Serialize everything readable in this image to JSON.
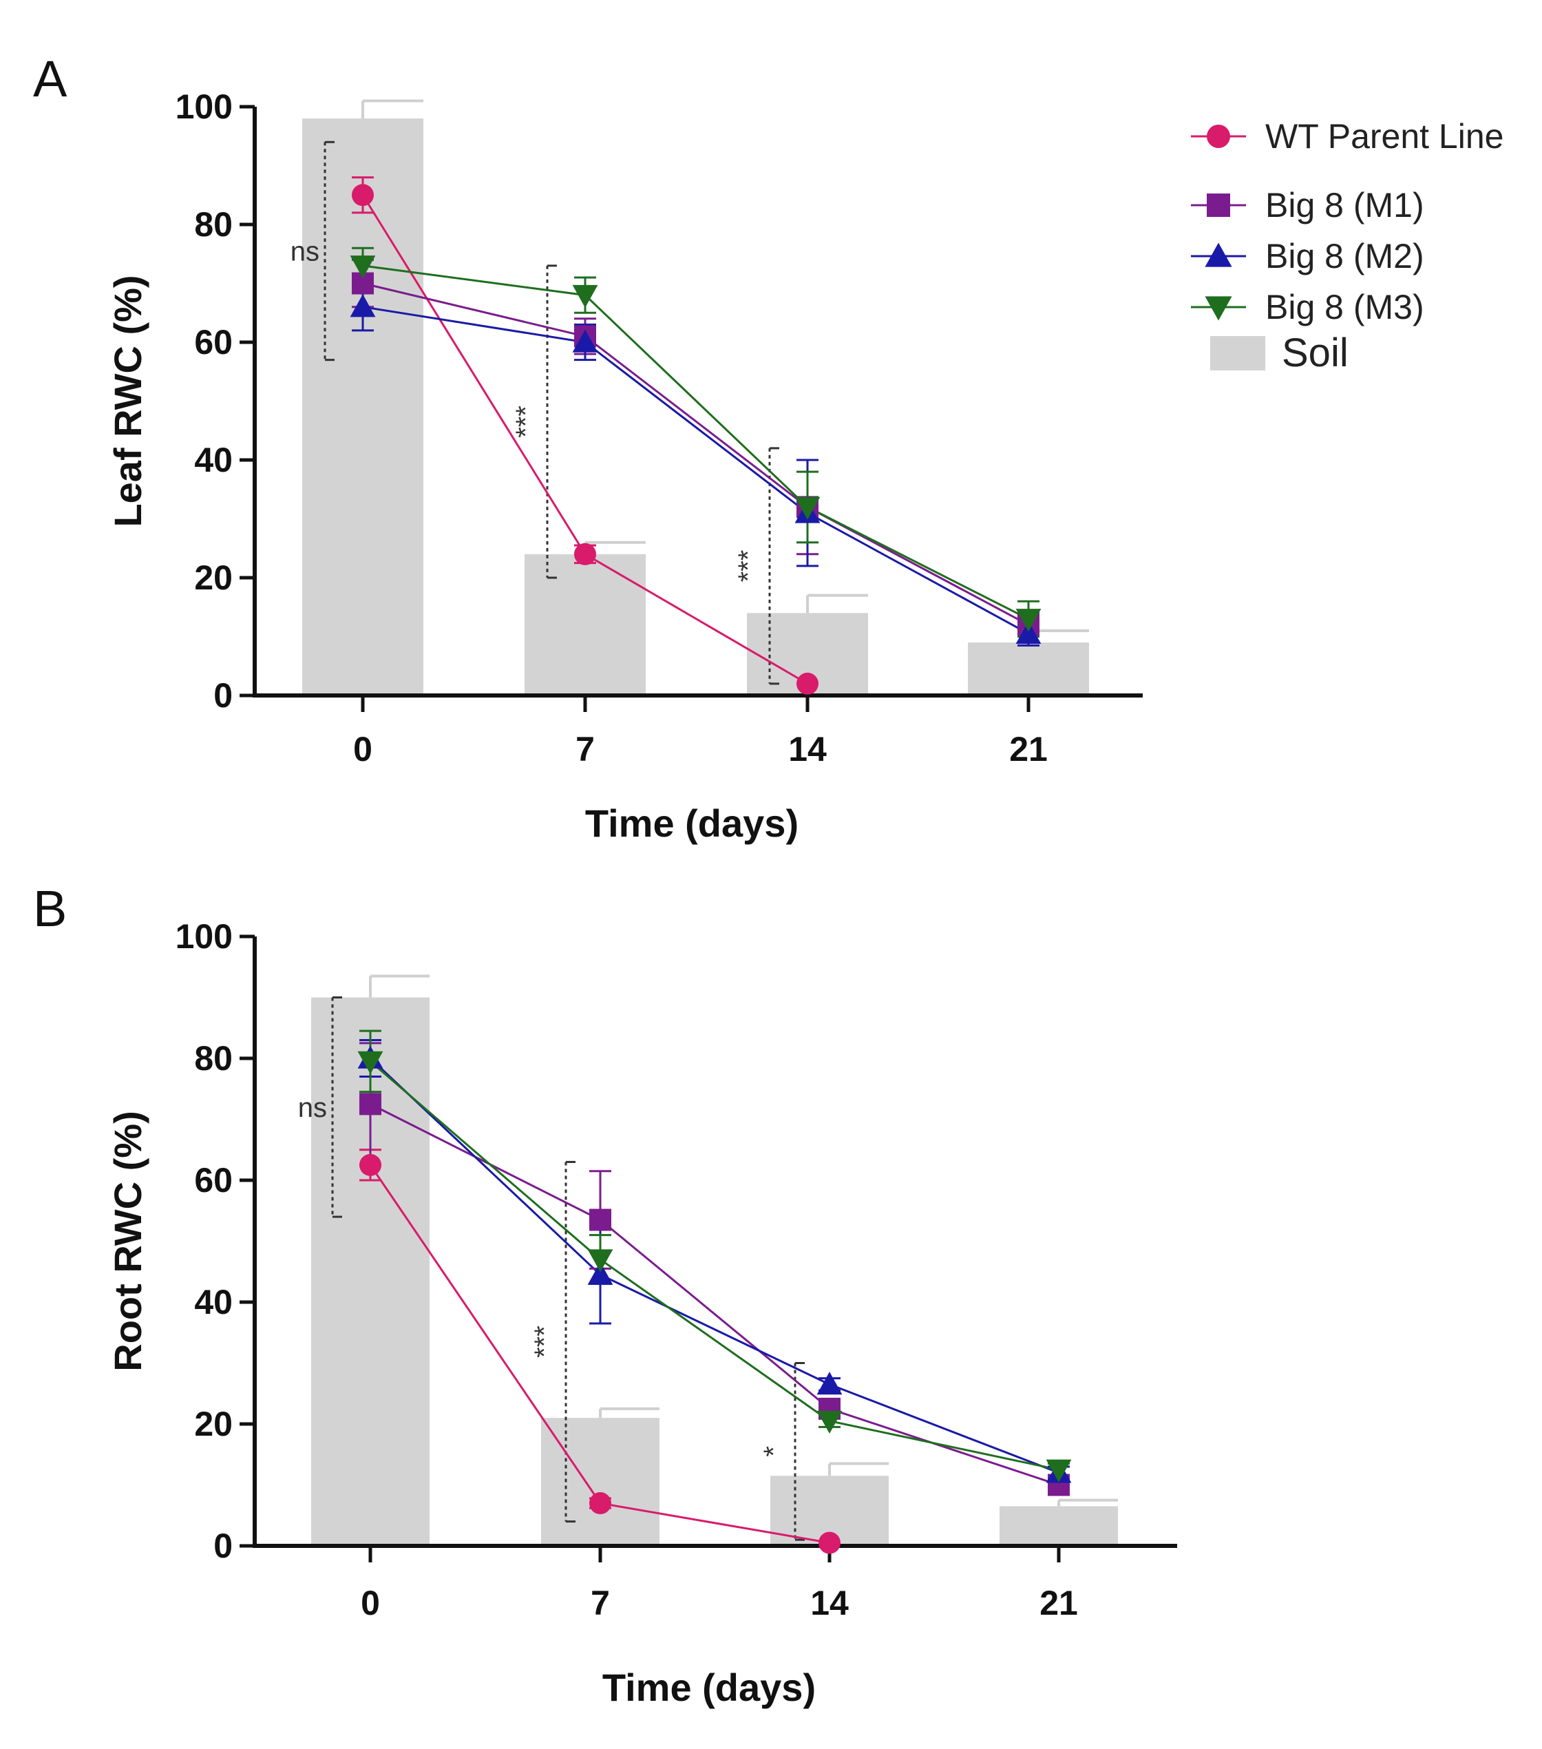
{
  "legend": {
    "items": [
      {
        "key": "wt",
        "label": "WT Parent Line",
        "color": "#d81b6a",
        "marker": "circle"
      },
      {
        "key": "m1",
        "label": "Big 8 (M1)",
        "color": "#7b1c8e",
        "marker": "square"
      },
      {
        "key": "m2",
        "label": "Big 8 (M2)",
        "color": "#1a1aa8",
        "marker": "triangle-up"
      },
      {
        "key": "m3",
        "label": "Big 8 (M3)",
        "color": "#1e6e1e",
        "marker": "triangle-down"
      }
    ],
    "soil_label": "Soil",
    "soil_color": "#d3d3d3"
  },
  "chart_data": [
    {
      "panel": "A",
      "type": "line",
      "xlabel": "Time (days)",
      "ylabel": "Leaf RWC (%)",
      "ylim": [
        0,
        100
      ],
      "yticks": [
        "0",
        "20",
        "40",
        "60",
        "80",
        "100"
      ],
      "categories": [
        "0",
        "7",
        "14",
        "21"
      ],
      "soil": {
        "values": [
          98,
          24,
          14,
          9
        ],
        "errors": [
          3,
          2,
          3,
          2
        ]
      },
      "series": [
        {
          "key": "wt",
          "name": "WT Parent Line",
          "values": [
            85,
            24,
            2,
            null
          ],
          "errors": [
            3,
            1.5,
            0.5,
            null
          ]
        },
        {
          "key": "m1",
          "name": "Big 8 (M1)",
          "values": [
            70,
            61,
            32,
            12
          ],
          "errors": [
            4,
            3,
            8,
            2
          ]
        },
        {
          "key": "m2",
          "name": "Big 8 (M2)",
          "values": [
            66,
            60,
            31,
            10.5
          ],
          "errors": [
            4,
            3,
            9,
            2
          ]
        },
        {
          "key": "m3",
          "name": "Big 8 (M3)",
          "values": [
            73,
            68,
            32,
            13
          ],
          "errors": [
            3,
            3,
            6,
            3
          ]
        }
      ],
      "annotations": [
        {
          "label": "ns",
          "x": "0",
          "y_range": [
            57,
            94
          ]
        },
        {
          "label": "***",
          "x": "7",
          "y_range": [
            20,
            73
          ]
        },
        {
          "label": "***",
          "x": "14",
          "y_range": [
            2,
            42
          ]
        }
      ]
    },
    {
      "panel": "B",
      "type": "line",
      "xlabel": "Time (days)",
      "ylabel": "Root RWC (%)",
      "ylim": [
        0,
        100
      ],
      "yticks": [
        "0",
        "20",
        "40",
        "60",
        "80",
        "100"
      ],
      "categories": [
        "0",
        "7",
        "14",
        "21"
      ],
      "soil": {
        "values": [
          90,
          21,
          11.5,
          6.5
        ],
        "errors": [
          3.5,
          1.5,
          2,
          1
        ]
      },
      "series": [
        {
          "key": "wt",
          "name": "WT Parent Line",
          "values": [
            62.5,
            7,
            0.5,
            null
          ],
          "errors": [
            2.5,
            0.8,
            0.3,
            null
          ]
        },
        {
          "key": "m1",
          "name": "Big 8 (M1)",
          "values": [
            72.5,
            53.5,
            22.5,
            10
          ],
          "errors": [
            10,
            8,
            1,
            1
          ]
        },
        {
          "key": "m2",
          "name": "Big 8 (M2)",
          "values": [
            80,
            44.5,
            26.5,
            12
          ],
          "errors": [
            3,
            8,
            1,
            1
          ]
        },
        {
          "key": "m3",
          "name": "Big 8 (M3)",
          "values": [
            79.5,
            47,
            20.5,
            12.5
          ],
          "errors": [
            5,
            4,
            1,
            1
          ]
        }
      ],
      "annotations": [
        {
          "label": "ns",
          "x": "0",
          "y_range": [
            54,
            90
          ]
        },
        {
          "label": "***",
          "x": "7",
          "y_range": [
            4,
            63
          ]
        },
        {
          "label": "*",
          "x": "14",
          "y_range": [
            1,
            30
          ]
        }
      ]
    }
  ]
}
